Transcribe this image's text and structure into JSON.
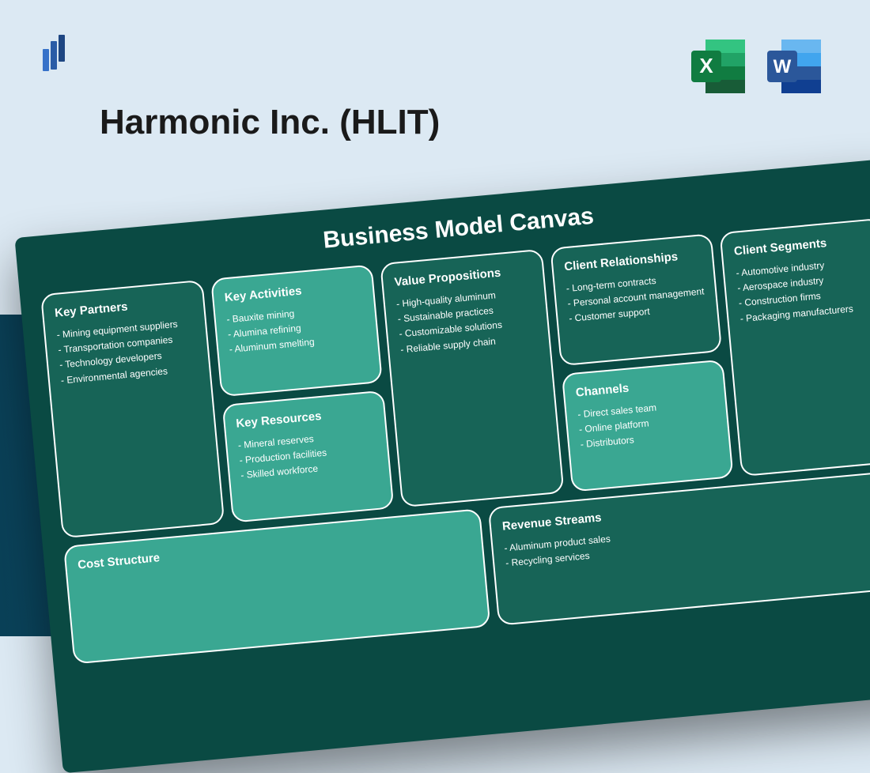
{
  "page": {
    "bg_top": "#dce9f3",
    "bg_bottom_from": "#0a4158",
    "bg_bottom_to": "#1a3a5c"
  },
  "title": "Harmonic Inc. (HLIT)",
  "logo": {
    "bars": [
      "#3772c9",
      "#2a5ca6",
      "#1e4682"
    ]
  },
  "icons": {
    "excel": {
      "letter": "X",
      "dark": "#107c41",
      "mid": "#21a366",
      "light": "#33c481",
      "tab": "#185c37"
    },
    "word": {
      "letter": "W",
      "dark": "#2b579a",
      "mid": "#41a5ee",
      "light": "#69b7f0",
      "tab": "#103f91"
    }
  },
  "canvas": {
    "title": "Business Model Canvas",
    "bg": "#0a4a43",
    "cell_light": "#3aa792",
    "cell_dark": "#176457",
    "border": "#ffffff",
    "blocks": {
      "key_partners": {
        "title": "Key Partners",
        "items": [
          "Mining equipment suppliers",
          "Transportation companies",
          "Technology developers",
          "Environmental agencies"
        ]
      },
      "key_activities": {
        "title": "Key Activities",
        "items": [
          "Bauxite mining",
          "Alumina refining",
          "Aluminum smelting"
        ]
      },
      "key_resources": {
        "title": "Key Resources",
        "items": [
          "Mineral reserves",
          "Production facilities",
          "Skilled workforce"
        ]
      },
      "value_props": {
        "title": "Value Propositions",
        "items": [
          "High-quality aluminum",
          "Sustainable practices",
          "Customizable solutions",
          "Reliable supply chain"
        ]
      },
      "client_rel": {
        "title": "Client Relationships",
        "items": [
          "Long-term contracts",
          "Personal account management",
          "Customer support"
        ]
      },
      "channels": {
        "title": "Channels",
        "items": [
          "Direct sales team",
          "Online platform",
          "Distributors"
        ]
      },
      "client_seg": {
        "title": "Client Segments",
        "items": [
          "Automotive industry",
          "Aerospace industry",
          "Construction firms",
          "Packaging manufacturers"
        ]
      },
      "cost_structure": {
        "title": "Cost Structure",
        "items": []
      },
      "revenue": {
        "title": "Revenue Streams",
        "items": [
          "Aluminum product sales",
          "Recycling services"
        ]
      }
    }
  }
}
